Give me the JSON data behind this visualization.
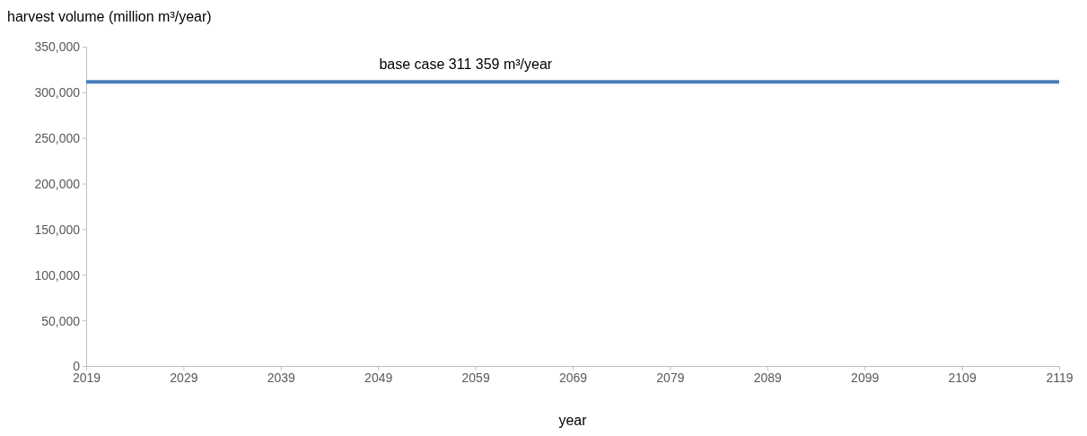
{
  "chart_data": {
    "type": "line",
    "ylabel": "harvest volume (million m³/year)",
    "xlabel": "year",
    "x": [
      2019,
      2119
    ],
    "series": [
      {
        "color": "#4a7ebb",
        "values": [
          311359,
          311359
        ]
      }
    ],
    "xlim": [
      2019,
      2119
    ],
    "xticks": [
      2019,
      2029,
      2039,
      2049,
      2059,
      2069,
      2079,
      2089,
      2099,
      2109,
      2119
    ],
    "ylim": [
      0,
      350000
    ],
    "yticks": [
      {
        "value": 0,
        "label": "0"
      },
      {
        "value": 50000,
        "label": "50,000"
      },
      {
        "value": 100000,
        "label": "100,000"
      },
      {
        "value": 150000,
        "label": "150,000"
      },
      {
        "value": 200000,
        "label": "200,000"
      },
      {
        "value": 250000,
        "label": "250,000"
      },
      {
        "value": 300000,
        "label": "300,000"
      },
      {
        "value": 350000,
        "label": "350,000"
      }
    ],
    "grid": false,
    "marker": "none",
    "line_style": "solid",
    "annotations": [
      {
        "text": "base case 311 359 m³/year",
        "x": 2058,
        "y": 311359
      }
    ]
  }
}
